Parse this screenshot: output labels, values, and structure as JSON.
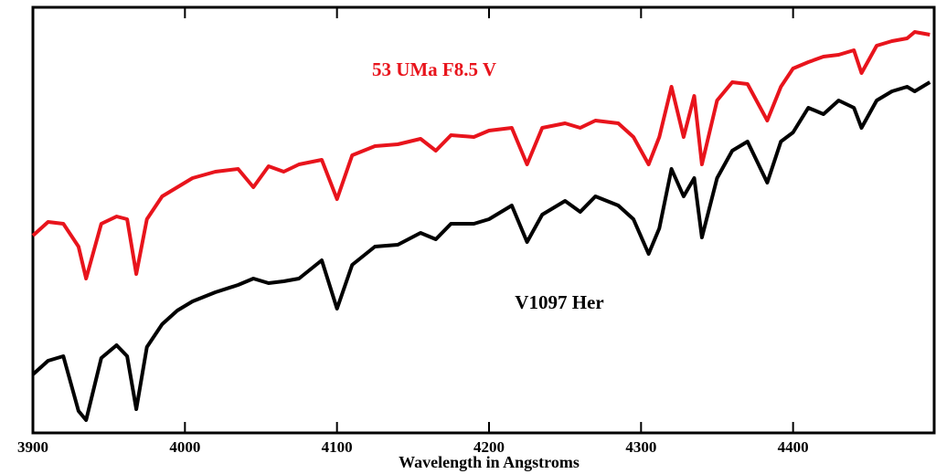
{
  "chart_data": {
    "type": "line",
    "xlabel": "Wavelength in Angstroms",
    "x": [
      3900,
      3910,
      3920,
      3930,
      3935,
      3945,
      3955,
      3962,
      3968,
      3975,
      3985,
      3995,
      4005,
      4020,
      4035,
      4045,
      4055,
      4065,
      4075,
      4090,
      4100,
      4110,
      4125,
      4140,
      4155,
      4165,
      4175,
      4190,
      4200,
      4215,
      4225,
      4235,
      4250,
      4260,
      4270,
      4285,
      4295,
      4305,
      4312,
      4320,
      4328,
      4335,
      4340,
      4350,
      4360,
      4370,
      4383,
      4392,
      4400,
      4410,
      4420,
      4430,
      4440,
      4445,
      4455,
      4465,
      4475,
      4480,
      4490
    ],
    "series": [
      {
        "name": "53 UMa F8.5 V",
        "color": "#e8141c",
        "values": [
          216,
          231,
          229,
          204,
          169,
          229,
          237,
          234,
          174,
          234,
          259,
          269,
          279,
          286,
          289,
          269,
          292,
          286,
          294,
          299,
          256,
          304,
          314,
          316,
          322,
          309,
          326,
          324,
          331,
          334,
          294,
          334,
          339,
          334,
          342,
          339,
          324,
          294,
          324,
          379,
          324,
          369,
          294,
          364,
          384,
          382,
          342,
          379,
          399,
          406,
          412,
          414,
          419,
          394,
          424,
          429,
          432,
          439,
          436
        ]
      },
      {
        "name": "V1097 Her",
        "color": "#000000",
        "values": [
          64,
          79,
          84,
          24,
          14,
          82,
          96,
          84,
          26,
          94,
          119,
          134,
          144,
          154,
          162,
          169,
          164,
          166,
          169,
          189,
          136,
          184,
          204,
          206,
          219,
          212,
          229,
          229,
          234,
          249,
          209,
          239,
          254,
          242,
          259,
          249,
          234,
          196,
          224,
          289,
          259,
          279,
          214,
          279,
          309,
          319,
          274,
          319,
          329,
          356,
          349,
          364,
          356,
          334,
          364,
          374,
          379,
          374,
          384
        ]
      }
    ],
    "xlim": [
      3900,
      4494
    ],
    "xticks": [
      3900,
      4000,
      4100,
      4200,
      4300,
      4400
    ],
    "ylim": [
      0,
      466
    ]
  }
}
